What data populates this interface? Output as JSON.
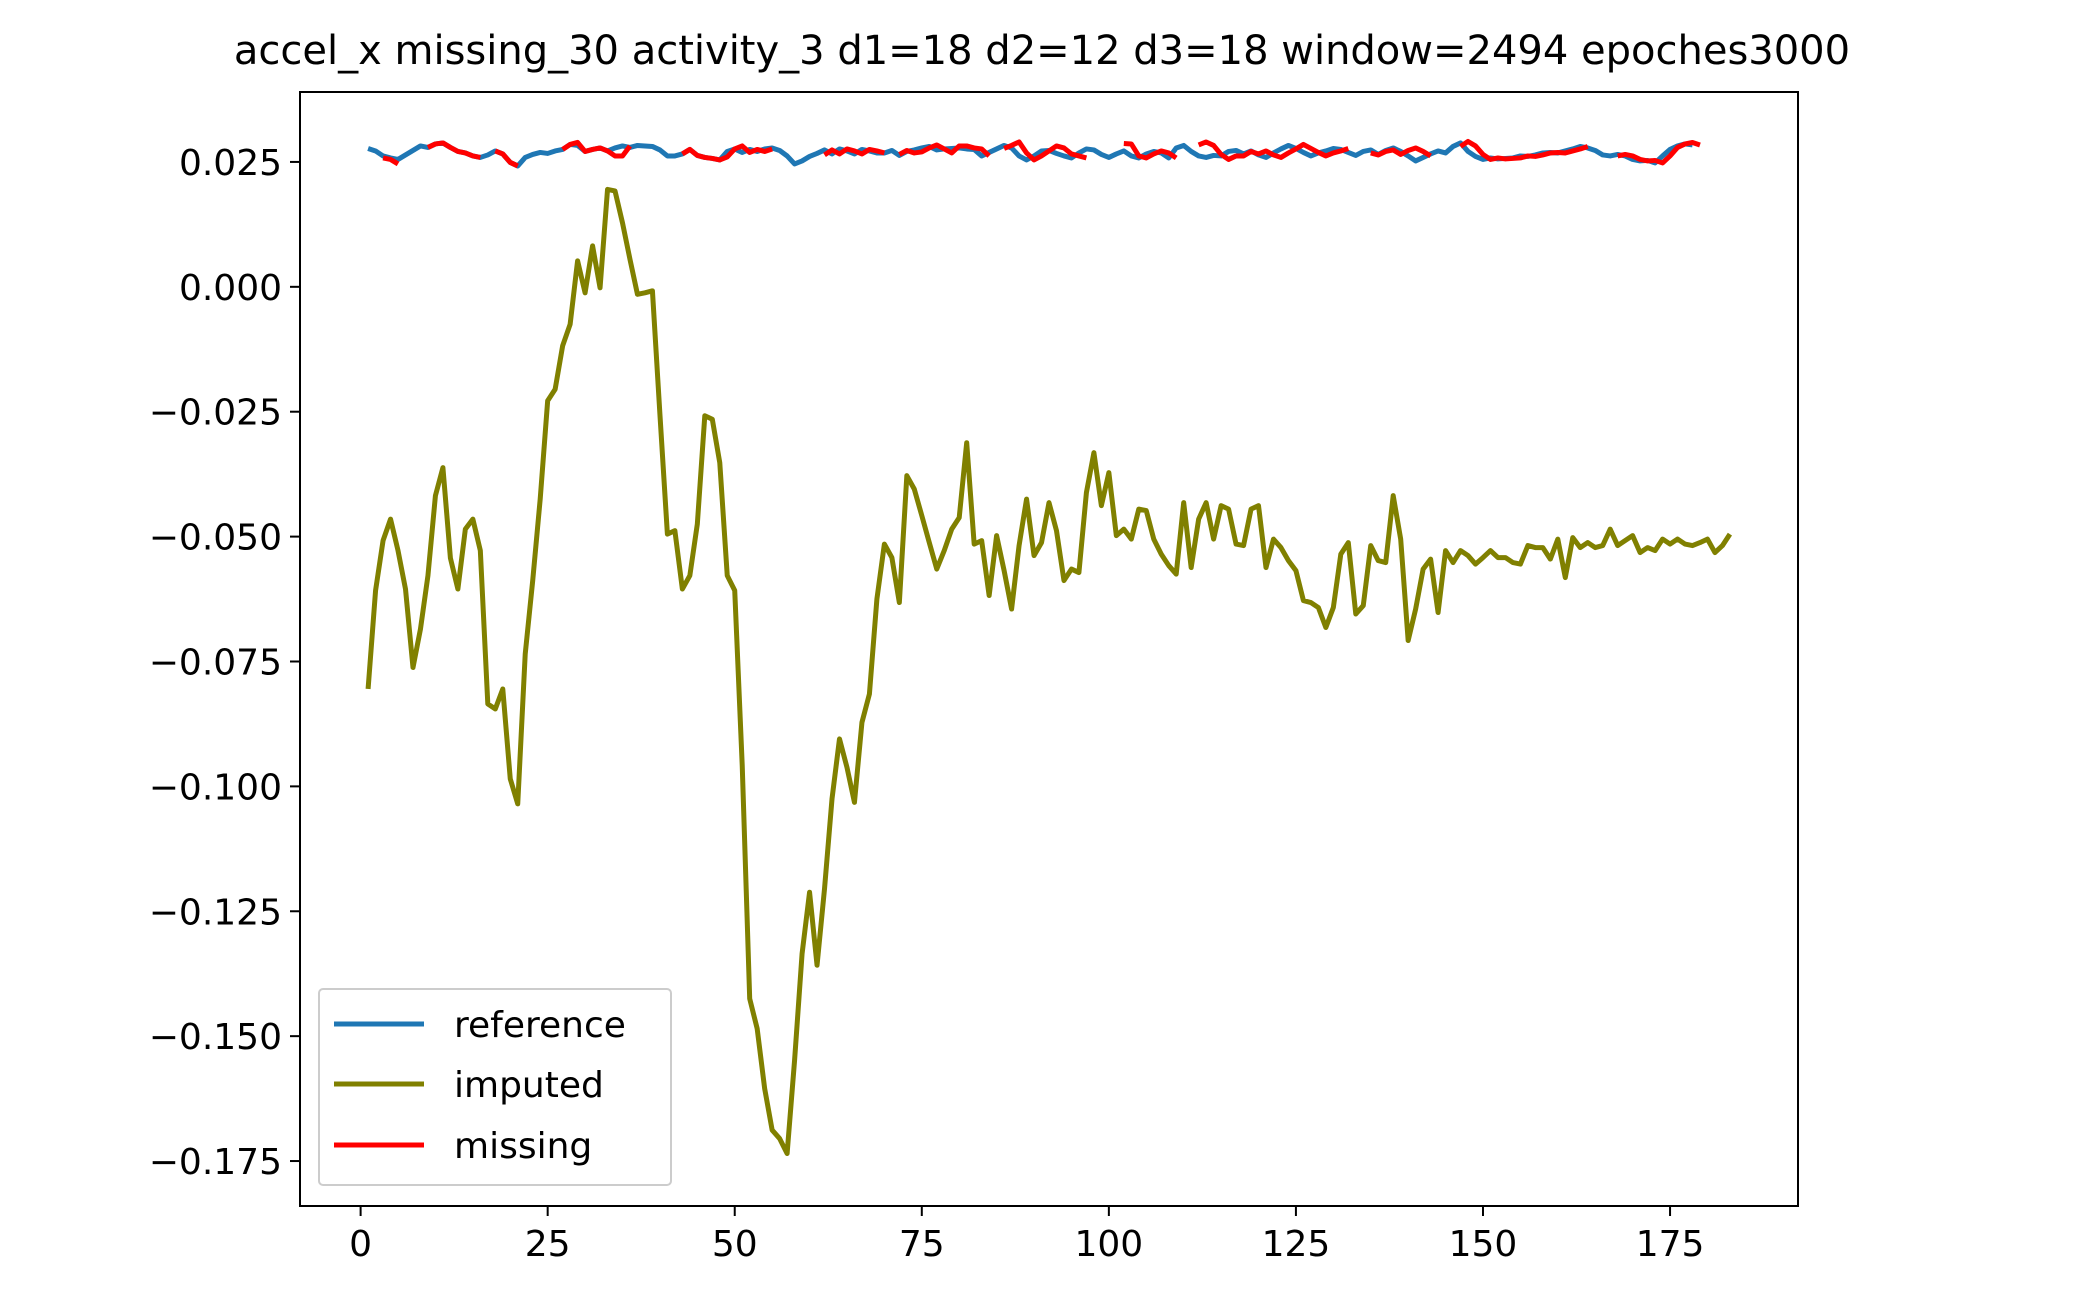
{
  "chart_data": {
    "type": "line",
    "title": "accel_x missing_30 activity_3 d1=18 d2=12 d3=18 window=2494 epoches3000",
    "xlabel": "",
    "ylabel": "",
    "xlim": [
      -8.1,
      192.1
    ],
    "ylim": [
      -0.184,
      0.039
    ],
    "xticks": [
      0,
      25,
      50,
      75,
      100,
      125,
      150,
      175
    ],
    "xtick_labels": [
      "0",
      "25",
      "50",
      "75",
      "100",
      "125",
      "150",
      "175"
    ],
    "yticks": [
      0.025,
      0.0,
      -0.025,
      -0.05,
      -0.075,
      -0.1,
      -0.125,
      -0.15,
      -0.175
    ],
    "ytick_labels": [
      "0.025",
      "0.000",
      "−0.025",
      "−0.050",
      "−0.075",
      "−0.100",
      "−0.125",
      "−0.150",
      "−0.175"
    ],
    "grid": false,
    "legend_position": "lower-left",
    "legend": [
      {
        "label": "reference",
        "color": "#1f77b4"
      },
      {
        "label": "imputed",
        "color": "#808000"
      },
      {
        "label": "missing",
        "color": "#ff0000"
      }
    ],
    "series": [
      {
        "name": "reference",
        "color": "#1f77b4",
        "x_start": 1,
        "x_step": 1,
        "values": [
          0.0277,
          0.0272,
          0.0262,
          0.0258,
          0.0255,
          0.0264,
          0.0273,
          0.0282,
          0.0279,
          0.0286,
          0.0288,
          0.0279,
          0.0271,
          0.0268,
          0.0262,
          0.0259,
          0.0264,
          0.0272,
          0.0266,
          0.0249,
          0.0242,
          0.0259,
          0.0265,
          0.0269,
          0.0267,
          0.0272,
          0.0275,
          0.0285,
          0.0283,
          0.0271,
          0.0275,
          0.0278,
          0.0272,
          0.0278,
          0.0282,
          0.0279,
          0.0283,
          0.0282,
          0.0281,
          0.0274,
          0.0262,
          0.0262,
          0.0266,
          0.0275,
          0.0263,
          0.0259,
          0.0257,
          0.0254,
          0.0271,
          0.0276,
          0.0269,
          0.0275,
          0.0271,
          0.0276,
          0.0278,
          0.0273,
          0.0262,
          0.0246,
          0.0252,
          0.0261,
          0.0267,
          0.0274,
          0.0266,
          0.0276,
          0.0272,
          0.0266,
          0.0275,
          0.0272,
          0.0268,
          0.0268,
          0.0273,
          0.0263,
          0.0271,
          0.0274,
          0.0278,
          0.0281,
          0.0274,
          0.0276,
          0.0277,
          0.0278,
          0.0276,
          0.0275,
          0.0262,
          0.0269,
          0.0276,
          0.0283,
          0.0278,
          0.0262,
          0.0254,
          0.0262,
          0.0272,
          0.0273,
          0.0267,
          0.0262,
          0.0258,
          0.0268,
          0.0276,
          0.0274,
          0.0265,
          0.0259,
          0.0266,
          0.0272,
          0.0262,
          0.0258,
          0.0266,
          0.0271,
          0.0268,
          0.0258,
          0.0278,
          0.0283,
          0.0271,
          0.0262,
          0.0259,
          0.0263,
          0.0262,
          0.0271,
          0.0273,
          0.0266,
          0.0272,
          0.0264,
          0.0259,
          0.0268,
          0.0276,
          0.0283,
          0.0277,
          0.0269,
          0.0262,
          0.0268,
          0.0272,
          0.0277,
          0.0275,
          0.0269,
          0.0263,
          0.0271,
          0.0274,
          0.0265,
          0.0273,
          0.0278,
          0.0271,
          0.0262,
          0.0252,
          0.0259,
          0.0266,
          0.0272,
          0.0268,
          0.0281,
          0.0288,
          0.0271,
          0.0261,
          0.0255,
          0.0258,
          0.0256,
          0.0257,
          0.0258,
          0.0262,
          0.0261,
          0.0264,
          0.0268,
          0.0269,
          0.0268,
          0.0272,
          0.0276,
          0.0281,
          0.0278,
          0.0273,
          0.0264,
          0.0262,
          0.0265,
          0.0262,
          0.0255,
          0.0252,
          0.0253,
          0.0248,
          0.0262,
          0.0275,
          0.0282,
          0.0286,
          0.0284
        ]
      },
      {
        "name": "imputed",
        "color": "#808000",
        "x_start": 1,
        "x_step": 1,
        "values": [
          -0.0805,
          -0.0608,
          -0.0508,
          -0.0465,
          -0.0528,
          -0.0605,
          -0.0762,
          -0.0685,
          -0.0578,
          -0.0418,
          -0.0362,
          -0.0543,
          -0.0605,
          -0.0485,
          -0.0465,
          -0.0528,
          -0.0835,
          -0.0845,
          -0.0805,
          -0.0985,
          -0.1035,
          -0.0735,
          -0.0588,
          -0.0425,
          -0.0228,
          -0.0205,
          -0.0118,
          -0.0075,
          0.0052,
          -0.0012,
          0.0082,
          -0.0002,
          0.0195,
          0.0192,
          0.0128,
          0.0055,
          -0.0015,
          -0.0012,
          -0.0008,
          -0.0255,
          -0.0495,
          -0.0488,
          -0.0605,
          -0.0578,
          -0.0475,
          -0.0258,
          -0.0265,
          -0.0352,
          -0.0578,
          -0.0608,
          -0.0958,
          -0.1425,
          -0.1485,
          -0.1605,
          -0.1688,
          -0.1705,
          -0.1735,
          -0.1548,
          -0.1335,
          -0.1212,
          -0.1358,
          -0.1205,
          -0.1025,
          -0.0905,
          -0.0962,
          -0.1032,
          -0.0872,
          -0.0815,
          -0.0625,
          -0.0515,
          -0.0542,
          -0.0632,
          -0.0378,
          -0.0405,
          -0.0458,
          -0.0512,
          -0.0565,
          -0.0528,
          -0.0485,
          -0.0462,
          -0.0312,
          -0.0515,
          -0.0508,
          -0.0618,
          -0.0498,
          -0.0568,
          -0.0645,
          -0.0518,
          -0.0425,
          -0.0538,
          -0.0512,
          -0.0432,
          -0.0488,
          -0.0588,
          -0.0565,
          -0.0572,
          -0.0412,
          -0.0332,
          -0.0438,
          -0.0372,
          -0.0498,
          -0.0485,
          -0.0505,
          -0.0445,
          -0.0448,
          -0.0505,
          -0.0535,
          -0.0558,
          -0.0575,
          -0.0432,
          -0.0562,
          -0.0465,
          -0.0432,
          -0.0505,
          -0.0438,
          -0.0445,
          -0.0515,
          -0.0518,
          -0.0445,
          -0.0438,
          -0.0562,
          -0.0505,
          -0.0522,
          -0.0548,
          -0.0568,
          -0.0628,
          -0.0632,
          -0.0642,
          -0.0682,
          -0.0642,
          -0.0535,
          -0.0512,
          -0.0655,
          -0.0638,
          -0.0518,
          -0.0548,
          -0.0552,
          -0.0418,
          -0.0505,
          -0.0708,
          -0.0645,
          -0.0565,
          -0.0545,
          -0.0652,
          -0.0528,
          -0.0552,
          -0.0528,
          -0.0538,
          -0.0555,
          -0.0542,
          -0.0528,
          -0.0542,
          -0.0542,
          -0.0552,
          -0.0555,
          -0.0518,
          -0.0522,
          -0.0522,
          -0.0545,
          -0.0505,
          -0.0582,
          -0.0502,
          -0.0522,
          -0.0512,
          -0.0522,
          -0.0518,
          -0.0485,
          -0.0518,
          -0.0508,
          -0.0498,
          -0.0532,
          -0.0522,
          -0.0528,
          -0.0505,
          -0.0515,
          -0.0505,
          -0.0515,
          -0.0518,
          -0.0512,
          -0.0505,
          -0.0532,
          -0.0518,
          -0.0495
        ]
      },
      {
        "name": "missing",
        "color": "#ff0000",
        "x_start": 1,
        "x_step": 1,
        "segments": [
          {
            "x_start": 3,
            "values": [
              0.0258,
              0.0255,
              0.0246
            ]
          },
          {
            "x_start": 9,
            "values": [
              0.0279,
              0.0286,
              0.0288,
              0.0279,
              0.0271,
              0.0268,
              0.0262,
              0.0259
            ]
          },
          {
            "x_start": 18,
            "values": [
              0.0272,
              0.0266,
              0.0249,
              0.0242
            ]
          },
          {
            "x_start": 27,
            "values": [
              0.0275,
              0.0285,
              0.0289,
              0.0271,
              0.0275,
              0.0278,
              0.0272,
              0.0262,
              0.0262,
              0.0282
            ]
          },
          {
            "x_start": 43,
            "values": [
              0.0266,
              0.0275,
              0.0263,
              0.0259,
              0.0257,
              0.0254,
              0.026,
              0.0276,
              0.0282,
              0.0269,
              0.0275,
              0.0271,
              0.0276
            ]
          },
          {
            "x_start": 62,
            "values": [
              0.0264,
              0.0274,
              0.0266,
              0.0276,
              0.0272,
              0.0266,
              0.0275,
              0.0272,
              0.0268
            ]
          },
          {
            "x_start": 72,
            "values": [
              0.0265,
              0.0273,
              0.0268,
              0.027,
              0.0278,
              0.0284,
              0.0276,
              0.0268,
              0.0282,
              0.0282,
              0.0278,
              0.0276,
              0.0262
            ]
          },
          {
            "x_start": 86,
            "values": [
              0.0277,
              0.0283,
              0.029,
              0.0268,
              0.0254,
              0.0262,
              0.0272,
              0.0282,
              0.0278,
              0.0266,
              0.0262,
              0.0258
            ]
          },
          {
            "x_start": 102,
            "values": [
              0.0287,
              0.0286,
              0.0262,
              0.0258,
              0.0266,
              0.0272,
              0.0268,
              0.0258
            ]
          },
          {
            "x_start": 112,
            "values": [
              0.0284,
              0.029,
              0.0283,
              0.0265,
              0.0255,
              0.0262,
              0.0262,
              0.0271,
              0.0266,
              0.0272,
              0.0264,
              0.0259,
              0.0268,
              0.0276,
              0.0285,
              0.0277,
              0.0269,
              0.0262,
              0.0268,
              0.0272,
              0.0277
            ]
          },
          {
            "x_start": 135,
            "values": [
              0.0268,
              0.0264,
              0.0271,
              0.0274,
              0.0265,
              0.0273,
              0.0278,
              0.0271,
              0.0262
            ]
          },
          {
            "x_start": 147,
            "values": [
              0.0281,
              0.0291,
              0.0282,
              0.0265,
              0.0255,
              0.0258,
              0.0256,
              0.0257,
              0.0258,
              0.0262,
              0.0261,
              0.0264,
              0.0268,
              0.0269,
              0.0268,
              0.0272,
              0.0276,
              0.0281
            ]
          },
          {
            "x_start": 168,
            "values": [
              0.0262,
              0.0265,
              0.0262,
              0.0255,
              0.0252,
              0.0253,
              0.0248,
              0.0262,
              0.0279,
              0.0286,
              0.0289,
              0.0284
            ]
          }
        ]
      }
    ]
  }
}
